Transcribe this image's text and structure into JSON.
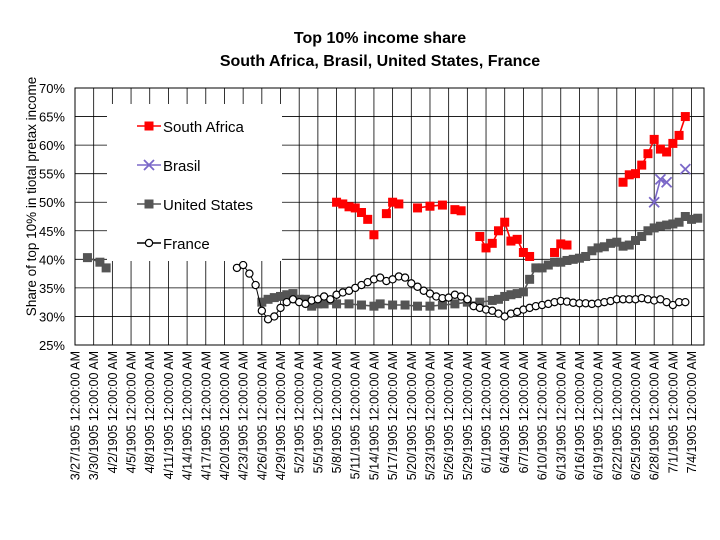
{
  "chart_data": {
    "type": "line",
    "title": "Top 10% income share",
    "subtitle": "South Africa, Brasil, United States, France",
    "xlabel": "",
    "ylabel": "Share of top 10% in tiotal pretax income",
    "ylim": [
      0.25,
      0.7
    ],
    "yticks": [
      "25%",
      "30%",
      "35%",
      "40%",
      "45%",
      "50%",
      "55%",
      "60%",
      "65%",
      "70%"
    ],
    "grid": true,
    "legend_position": "top-left",
    "x": [
      "3/27/1905 12:00:00 AM",
      "3/30/1905 12:00:00 AM",
      "4/2/1905 12:00:00 AM",
      "4/5/1905 12:00:00 AM",
      "4/8/1905 12:00:00 AM",
      "4/11/1905 12:00:00 AM",
      "4/14/1905 12:00:00 AM",
      "4/17/1905 12:00:00 AM",
      "4/20/1905 12:00:00 AM",
      "4/23/1905 12:00:00 AM",
      "4/26/1905 12:00:00 AM",
      "4/29/1905 12:00:00 AM",
      "5/2/1905 12:00:00 AM",
      "5/5/1905 12:00:00 AM",
      "5/8/1905 12:00:00 AM",
      "5/11/1905 12:00:00 AM",
      "5/14/1905 12:00:00 AM",
      "5/17/1905 12:00:00 AM",
      "5/20/1905 12:00:00 AM",
      "5/23/1905 12:00:00 AM",
      "5/26/1905 12:00:00 AM",
      "5/29/1905 12:00:00 AM",
      "6/1/1905 12:00:00 AM",
      "6/4/1905 12:00:00 AM",
      "6/7/1905 12:00:00 AM",
      "6/10/1905 12:00:00 AM",
      "6/13/1905 12:00:00 AM",
      "6/16/1905 12:00:00 AM",
      "6/19/1905 12:00:00 AM",
      "6/22/1905 12:00:00 AM",
      "6/25/1905 12:00:00 AM",
      "6/28/1905 12:00:00 AM",
      "7/1/1905 12:00:00 AM",
      "7/4/1905 12:00:00 AM"
    ],
    "x_range": [
      "3/27/1905",
      "7/6/1905"
    ],
    "series": [
      {
        "name": "South Africa",
        "color": "#ff0000",
        "marker": "square-filled",
        "points": [
          [
            "5/8/1905",
            0.5
          ],
          [
            "5/9/1905",
            0.497
          ],
          [
            "5/10/1905",
            0.492
          ],
          [
            "5/11/1905",
            0.49
          ],
          [
            "5/12/1905",
            0.482
          ],
          [
            "5/13/1905",
            0.47
          ],
          null,
          [
            "5/14/1905",
            0.443
          ],
          null,
          [
            "5/16/1905",
            0.48
          ],
          [
            "5/17/1905",
            0.5
          ],
          [
            "5/18/1905",
            0.497
          ],
          null,
          [
            "5/21/1905",
            0.49
          ],
          [
            "5/23/1905",
            0.493
          ],
          [
            "5/25/1905",
            0.495
          ],
          null,
          [
            "5/27/1905",
            0.487
          ],
          [
            "5/28/1905",
            0.485
          ],
          null,
          [
            "5/31/1905",
            0.44
          ],
          [
            "6/1/1905",
            0.42
          ],
          [
            "6/2/1905",
            0.428
          ],
          [
            "6/3/1905",
            0.45
          ],
          [
            "6/4/1905",
            0.465
          ],
          [
            "6/5/1905",
            0.432
          ],
          [
            "6/6/1905",
            0.435
          ],
          [
            "6/7/1905",
            0.412
          ],
          [
            "6/8/1905",
            0.405
          ],
          null,
          [
            "6/12/1905",
            0.412
          ],
          [
            "6/13/1905",
            0.427
          ],
          [
            "6/14/1905",
            0.425
          ],
          null,
          [
            "6/23/1905",
            0.535
          ],
          [
            "6/24/1905",
            0.548
          ],
          [
            "6/25/1905",
            0.55
          ],
          [
            "6/26/1905",
            0.565
          ],
          [
            "6/27/1905",
            0.585
          ],
          [
            "6/28/1905",
            0.61
          ],
          [
            "6/29/1905",
            0.593
          ],
          [
            "6/30/1905",
            0.588
          ],
          [
            "7/1/1905",
            0.603
          ],
          [
            "7/2/1905",
            0.617
          ],
          [
            "7/3/1905",
            0.65
          ]
        ]
      },
      {
        "name": "Brasil",
        "color": "#7b68c8",
        "marker": "x",
        "points": [
          [
            "6/28/1905",
            0.5
          ],
          [
            "6/29/1905",
            0.54
          ],
          [
            "6/30/1905",
            0.535
          ],
          null,
          [
            "7/3/1905",
            0.558
          ]
        ]
      },
      {
        "name": "United States",
        "color": "#555555",
        "marker": "square-filled",
        "points": [
          [
            "3/29/1905",
            0.403
          ],
          [
            "3/31/1905",
            0.395
          ],
          [
            "4/1/1905",
            0.385
          ],
          null,
          [
            "4/26/1905",
            0.325
          ],
          [
            "4/27/1905",
            0.33
          ],
          [
            "4/28/1905",
            0.333
          ],
          [
            "4/29/1905",
            0.335
          ],
          [
            "4/30/1905",
            0.338
          ],
          [
            "5/1/1905",
            0.34
          ],
          [
            "5/2/1905",
            0.33
          ],
          [
            "5/3/1905",
            0.33
          ],
          [
            "5/4/1905",
            0.318
          ],
          [
            "5/5/1905",
            0.322
          ],
          [
            "5/6/1905",
            0.322
          ],
          [
            "5/8/1905",
            0.322
          ],
          [
            "5/10/1905",
            0.322
          ],
          [
            "5/12/1905",
            0.32
          ],
          [
            "5/14/1905",
            0.318
          ],
          [
            "5/15/1905",
            0.322
          ],
          [
            "5/17/1905",
            0.32
          ],
          [
            "5/19/1905",
            0.32
          ],
          [
            "5/21/1905",
            0.318
          ],
          [
            "5/23/1905",
            0.318
          ],
          [
            "5/25/1905",
            0.32
          ],
          [
            "5/27/1905",
            0.322
          ],
          [
            "5/29/1905",
            0.325
          ],
          [
            "5/31/1905",
            0.325
          ],
          [
            "6/2/1905",
            0.328
          ],
          [
            "6/3/1905",
            0.33
          ],
          [
            "6/4/1905",
            0.335
          ],
          [
            "6/5/1905",
            0.338
          ],
          [
            "6/6/1905",
            0.34
          ],
          [
            "6/7/1905",
            0.343
          ],
          [
            "6/8/1905",
            0.365
          ],
          [
            "6/9/1905",
            0.385
          ],
          [
            "6/10/1905",
            0.385
          ],
          [
            "6/11/1905",
            0.39
          ],
          [
            "6/12/1905",
            0.395
          ],
          [
            "6/13/1905",
            0.395
          ],
          [
            "6/14/1905",
            0.398
          ],
          [
            "6/15/1905",
            0.4
          ],
          [
            "6/16/1905",
            0.402
          ],
          [
            "6/17/1905",
            0.405
          ],
          [
            "6/18/1905",
            0.415
          ],
          [
            "6/19/1905",
            0.42
          ],
          [
            "6/20/1905",
            0.422
          ],
          [
            "6/21/1905",
            0.428
          ],
          [
            "6/22/1905",
            0.43
          ],
          [
            "6/23/1905",
            0.423
          ],
          [
            "6/24/1905",
            0.425
          ],
          [
            "6/25/1905",
            0.433
          ],
          [
            "6/26/1905",
            0.44
          ],
          [
            "6/27/1905",
            0.45
          ],
          [
            "6/28/1905",
            0.455
          ],
          [
            "6/29/1905",
            0.458
          ],
          [
            "6/30/1905",
            0.46
          ],
          [
            "7/1/1905",
            0.462
          ],
          [
            "7/2/1905",
            0.465
          ],
          [
            "7/3/1905",
            0.475
          ],
          [
            "7/4/1905",
            0.47
          ],
          [
            "7/5/1905",
            0.472
          ]
        ]
      },
      {
        "name": "France",
        "color": "#000000",
        "marker": "circle-open",
        "points": [
          [
            "4/22/1905",
            0.385
          ],
          [
            "4/23/1905",
            0.39
          ],
          [
            "4/24/1905",
            0.375
          ],
          [
            "4/25/1905",
            0.355
          ],
          [
            "4/26/1905",
            0.31
          ],
          [
            "4/27/1905",
            0.295
          ],
          [
            "4/28/1905",
            0.3
          ],
          [
            "4/29/1905",
            0.315
          ],
          [
            "4/30/1905",
            0.325
          ],
          [
            "5/1/1905",
            0.33
          ],
          [
            "5/2/1905",
            0.325
          ],
          [
            "5/3/1905",
            0.322
          ],
          [
            "5/4/1905",
            0.328
          ],
          [
            "5/5/1905",
            0.33
          ],
          [
            "5/6/1905",
            0.335
          ],
          [
            "5/7/1905",
            0.33
          ],
          [
            "5/8/1905",
            0.338
          ],
          [
            "5/9/1905",
            0.342
          ],
          [
            "5/10/1905",
            0.345
          ],
          [
            "5/11/1905",
            0.35
          ],
          [
            "5/12/1905",
            0.355
          ],
          [
            "5/13/1905",
            0.36
          ],
          [
            "5/14/1905",
            0.365
          ],
          [
            "5/15/1905",
            0.368
          ],
          [
            "5/16/1905",
            0.362
          ],
          [
            "5/17/1905",
            0.365
          ],
          [
            "5/18/1905",
            0.37
          ],
          [
            "5/19/1905",
            0.368
          ],
          [
            "5/20/1905",
            0.358
          ],
          [
            "5/21/1905",
            0.352
          ],
          [
            "5/22/1905",
            0.345
          ],
          [
            "5/23/1905",
            0.34
          ],
          [
            "5/24/1905",
            0.335
          ],
          [
            "5/25/1905",
            0.332
          ],
          [
            "5/26/1905",
            0.333
          ],
          [
            "5/27/1905",
            0.338
          ],
          [
            "5/28/1905",
            0.335
          ],
          [
            "5/29/1905",
            0.33
          ],
          [
            "5/30/1905",
            0.318
          ],
          [
            "5/31/1905",
            0.315
          ],
          [
            "6/1/1905",
            0.312
          ],
          [
            "6/2/1905",
            0.31
          ],
          [
            "6/3/1905",
            0.305
          ],
          [
            "6/4/1905",
            0.3
          ],
          [
            "6/5/1905",
            0.305
          ],
          [
            "6/6/1905",
            0.308
          ],
          [
            "6/7/1905",
            0.312
          ],
          [
            "6/8/1905",
            0.315
          ],
          [
            "6/9/1905",
            0.318
          ],
          [
            "6/10/1905",
            0.32
          ],
          [
            "6/11/1905",
            0.322
          ],
          [
            "6/12/1905",
            0.325
          ],
          [
            "6/13/1905",
            0.327
          ],
          [
            "6/14/1905",
            0.326
          ],
          [
            "6/15/1905",
            0.324
          ],
          [
            "6/16/1905",
            0.323
          ],
          [
            "6/17/1905",
            0.323
          ],
          [
            "6/18/1905",
            0.322
          ],
          [
            "6/19/1905",
            0.323
          ],
          [
            "6/20/1905",
            0.325
          ],
          [
            "6/21/1905",
            0.327
          ],
          [
            "6/22/1905",
            0.33
          ],
          [
            "6/23/1905",
            0.33
          ],
          [
            "6/24/1905",
            0.33
          ],
          [
            "6/25/1905",
            0.33
          ],
          [
            "6/26/1905",
            0.332
          ],
          [
            "6/27/1905",
            0.33
          ],
          [
            "6/28/1905",
            0.328
          ],
          [
            "6/29/1905",
            0.33
          ],
          [
            "6/30/1905",
            0.325
          ],
          [
            "7/1/1905",
            0.32
          ],
          [
            "7/2/1905",
            0.325
          ],
          [
            "7/3/1905",
            0.325
          ]
        ]
      }
    ]
  }
}
